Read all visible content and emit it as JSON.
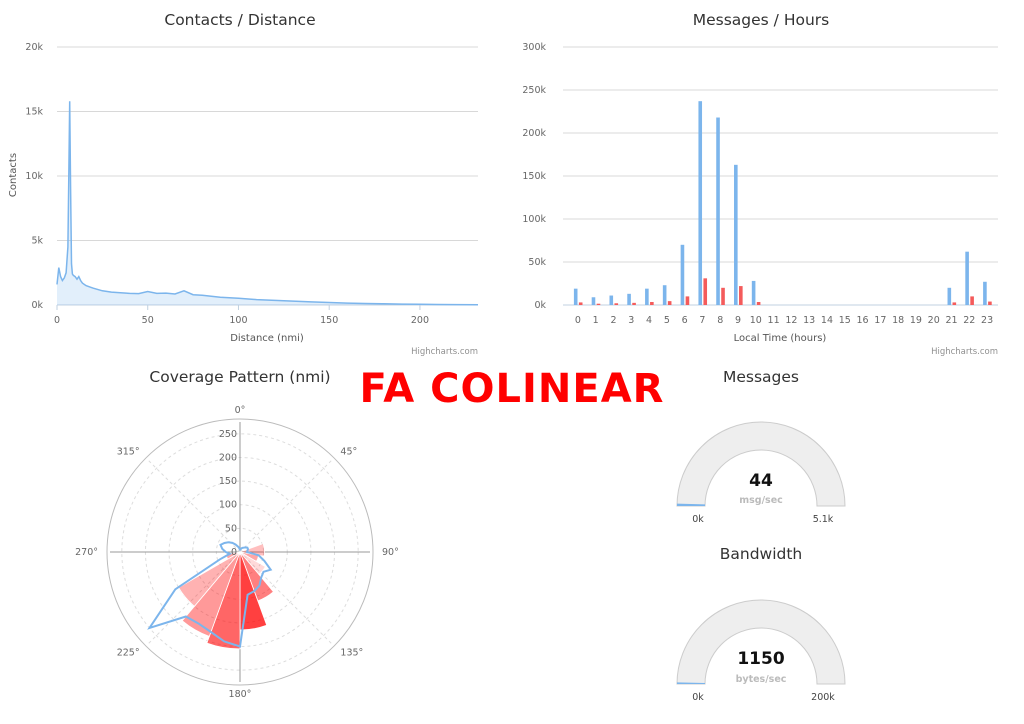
{
  "banner": "FA COLINEAR",
  "colors": {
    "blue": "#7cb5ec",
    "red": "#f45b5b",
    "grid": "#d8d8d8",
    "gauge_bg": "#eeeeee",
    "polar_fill": "#ff0000"
  },
  "credits": {
    "left": "Highcharts.com",
    "right": "Highcharts.com"
  },
  "chart_data": [
    {
      "type": "area",
      "title": "Contacts / Distance",
      "xlabel": "Distance (nmi)",
      "ylabel": "Contacts",
      "xlim": [
        0,
        232
      ],
      "ylim": [
        0,
        20000
      ],
      "x_ticks": [
        "0",
        "50",
        "100",
        "150",
        "200"
      ],
      "y_ticks": [
        "0k",
        "5k",
        "10k",
        "15k",
        "20k"
      ],
      "x": [
        0,
        1,
        2,
        3,
        4,
        5,
        6,
        6.5,
        7,
        7.5,
        8,
        8.5,
        9,
        10,
        11,
        12,
        13,
        14,
        16,
        18,
        20,
        25,
        30,
        35,
        40,
        45,
        50,
        55,
        60,
        65,
        70,
        75,
        80,
        90,
        100,
        110,
        120,
        130,
        140,
        150,
        160,
        170,
        180,
        190,
        200,
        210,
        220,
        232
      ],
      "values": [
        1600,
        2900,
        2200,
        1900,
        2100,
        2500,
        4500,
        10000,
        15800,
        9000,
        3200,
        2400,
        2300,
        2200,
        2000,
        2200,
        1900,
        1700,
        1500,
        1400,
        1300,
        1100,
        1000,
        950,
        900,
        880,
        1050,
        900,
        920,
        850,
        1100,
        800,
        750,
        600,
        520,
        420,
        360,
        300,
        240,
        190,
        150,
        120,
        90,
        70,
        55,
        40,
        30,
        20
      ]
    },
    {
      "type": "bar",
      "title": "Messages / Hours",
      "xlabel": "Local Time (hours)",
      "ylabel": "",
      "ylim": [
        0,
        300000
      ],
      "y_ticks": [
        "0k",
        "50k",
        "100k",
        "150k",
        "200k",
        "250k",
        "300k"
      ],
      "categories": [
        "0",
        "1",
        "2",
        "3",
        "4",
        "5",
        "6",
        "7",
        "8",
        "9",
        "10",
        "11",
        "12",
        "13",
        "14",
        "15",
        "16",
        "17",
        "18",
        "19",
        "20",
        "21",
        "22",
        "23"
      ],
      "series": [
        {
          "color": "#7cb5ec",
          "values": [
            19000,
            9000,
            11000,
            13000,
            19000,
            23000,
            70000,
            237000,
            218000,
            163000,
            28000,
            0,
            0,
            0,
            0,
            0,
            0,
            0,
            0,
            0,
            0,
            20000,
            62000,
            27000
          ]
        },
        {
          "color": "#f45b5b",
          "values": [
            3000,
            1500,
            2000,
            2500,
            3500,
            4500,
            10000,
            31000,
            20000,
            22000,
            3500,
            0,
            0,
            0,
            0,
            0,
            0,
            0,
            0,
            0,
            0,
            3000,
            10000,
            4000
          ]
        }
      ]
    },
    {
      "type": "polar",
      "title": "Coverage Pattern (nmi)",
      "ylim": [
        0,
        275
      ],
      "r_ticks": [
        "0",
        "50",
        "100",
        "150",
        "200",
        "250"
      ],
      "angle_ticks": [
        "0°",
        "45°",
        "90°",
        "135°",
        "180°",
        "225°",
        "270°",
        "315°"
      ],
      "outline_bearings": [
        0,
        10,
        20,
        30,
        40,
        50,
        60,
        70,
        80,
        90,
        100,
        110,
        120,
        130,
        140,
        150,
        160,
        170,
        180,
        190,
        200,
        210,
        220,
        230,
        240,
        250,
        260,
        270,
        280,
        290,
        300,
        310,
        320,
        330,
        340,
        350
      ],
      "outline_ranges": [
        5,
        6,
        8,
        10,
        12,
        15,
        18,
        18,
        16,
        15,
        40,
        55,
        75,
        65,
        70,
        82,
        88,
        92,
        200,
        192,
        180,
        175,
        178,
        250,
        158,
        45,
        22,
        30,
        38,
        44,
        38,
        32,
        25,
        18,
        12,
        8
      ],
      "sectors": [
        {
          "from": 70,
          "to": 100,
          "r": 52,
          "opacity": 0.25
        },
        {
          "from": 100,
          "to": 120,
          "r": 40,
          "opacity": 0.35
        },
        {
          "from": 120,
          "to": 140,
          "r": 62,
          "opacity": 0.15
        },
        {
          "from": 140,
          "to": 160,
          "r": 110,
          "opacity": 0.5
        },
        {
          "from": 160,
          "to": 180,
          "r": 165,
          "opacity": 0.75
        },
        {
          "from": 180,
          "to": 200,
          "r": 205,
          "opacity": 0.6
        },
        {
          "from": 200,
          "to": 220,
          "r": 190,
          "opacity": 0.4
        },
        {
          "from": 220,
          "to": 240,
          "r": 150,
          "opacity": 0.3
        },
        {
          "from": 240,
          "to": 260,
          "r": 30,
          "opacity": 0.35
        }
      ]
    },
    {
      "type": "gauge",
      "title": "Messages",
      "value": "44",
      "unit": "msg/sec",
      "min": "0k",
      "max": "5.1k",
      "fraction": 0.009
    },
    {
      "type": "gauge",
      "title": "Bandwidth",
      "value": "1150",
      "unit": "bytes/sec",
      "min": "0k",
      "max": "200k",
      "fraction": 0.006
    }
  ]
}
